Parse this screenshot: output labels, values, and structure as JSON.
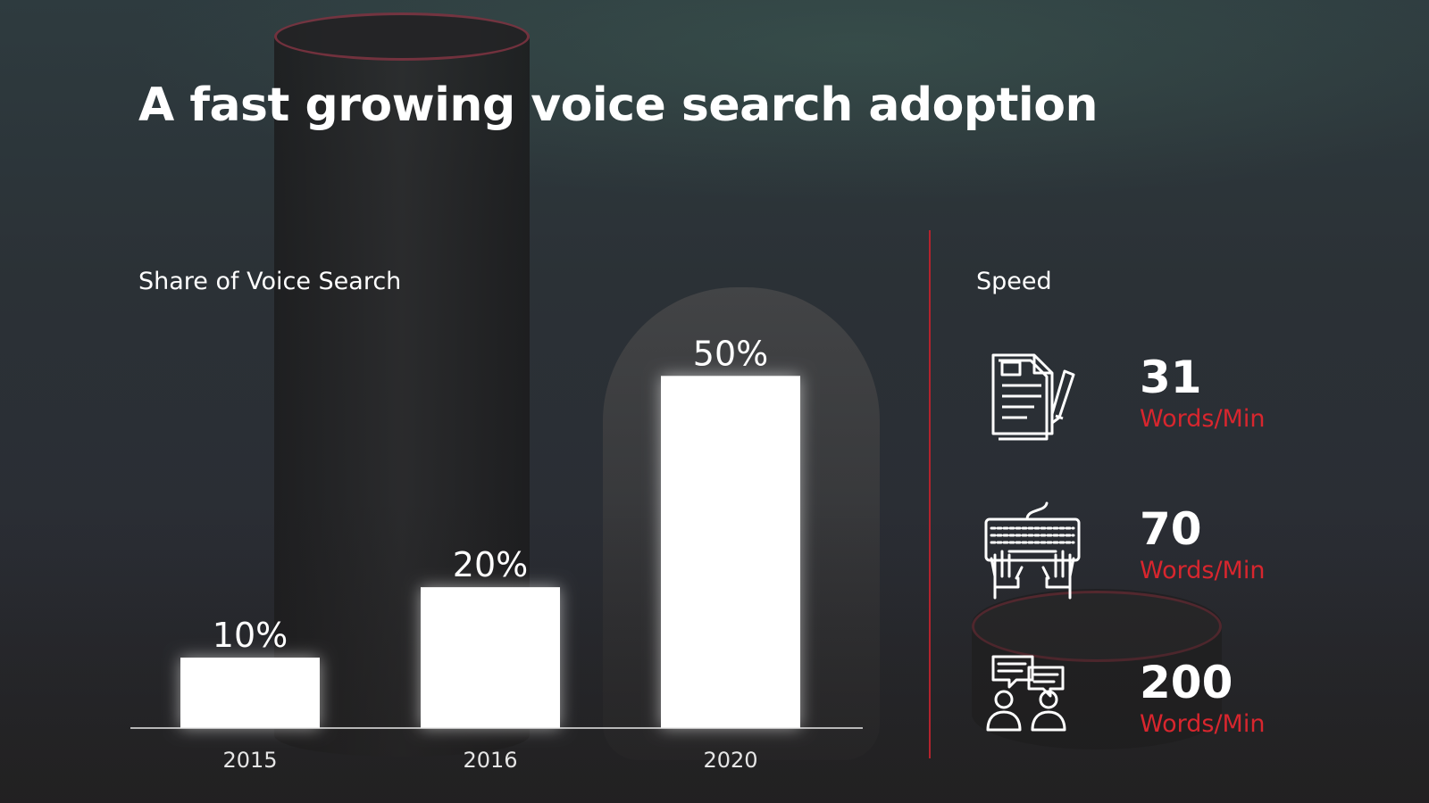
{
  "title": "A fast growing voice search adoption",
  "chart_data": {
    "type": "bar",
    "title": "Share of Voice Search",
    "categories": [
      "2015",
      "2016",
      "2020"
    ],
    "values": [
      10,
      20,
      50
    ],
    "value_labels": [
      "10%",
      "20%",
      "50%"
    ],
    "xlabel": "",
    "ylabel": "",
    "ylim": [
      0,
      60
    ],
    "grid": false,
    "bar_color": "#ffffff"
  },
  "speed": {
    "title": "Speed",
    "items": [
      {
        "icon": "document-writing-icon",
        "value": "31",
        "unit": "Words/Min"
      },
      {
        "icon": "keyboard-typing-icon",
        "value": "70",
        "unit": "Words/Min"
      },
      {
        "icon": "people-talking-icon",
        "value": "200",
        "unit": "Words/Min"
      }
    ]
  },
  "colors": {
    "accent": "#d8262e",
    "divider": "#b3232d",
    "bars": "#ffffff"
  }
}
